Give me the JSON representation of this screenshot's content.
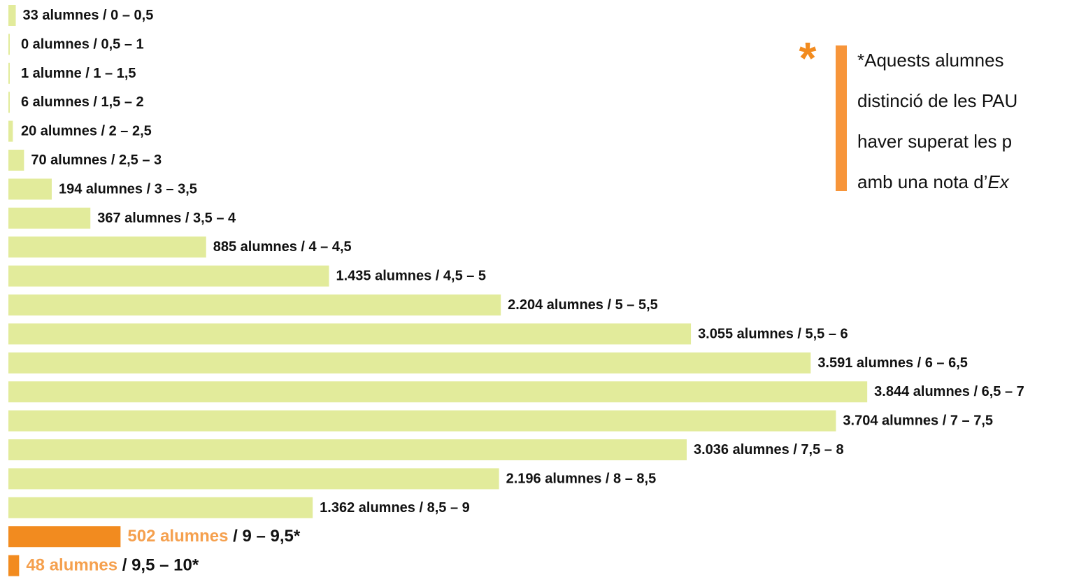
{
  "chart_data": {
    "type": "hbar",
    "categories": [
      "/ 0 – 0,5",
      "/ 0,5 – 1",
      "/ 1 – 1,5",
      "/ 1,5 – 2",
      "/ 2 – 2,5",
      "/ 2,5 – 3",
      "/ 3 – 3,5",
      "/ 3,5 – 4",
      "/ 4 – 4,5",
      "/ 4,5 – 5",
      "/ 5 – 5,5",
      "/ 5,5 – 6",
      "/ 6 – 6,5",
      "/ 6,5 – 7",
      "/ 7 – 7,5",
      "/ 7,5 – 8",
      "/ 8 – 8,5",
      "/ 8,5 – 9",
      "/ 9 – 9,5*",
      "/ 9,5 – 10*"
    ],
    "values": [
      33,
      0,
      1,
      6,
      20,
      70,
      194,
      367,
      885,
      1435,
      2204,
      3055,
      3591,
      3844,
      3704,
      3036,
      2196,
      1362,
      502,
      48
    ],
    "value_labels": [
      "33 alumnes",
      "0 alumnes",
      "1 alumne",
      "6 alumnes",
      "20 alumnes",
      "70 alumnes",
      "194 alumnes",
      "367 alumnes",
      "885 alumnes",
      "1.435 alumnes",
      "2.204 alumnes",
      "3.055 alumnes",
      "3.591 alumnes",
      "3.844 alumnes",
      "3.704 alumnes",
      "3.036 alumnes",
      "2.196 alumnes",
      "1.362 alumnes",
      "502 alumnes",
      "48 alumnes"
    ],
    "colors": [
      "#e2eb9b",
      "#e2eb9b",
      "#e2eb9b",
      "#e2eb9b",
      "#e2eb9b",
      "#e2eb9b",
      "#e2eb9b",
      "#e2eb9b",
      "#e2eb9b",
      "#e2eb9b",
      "#e2eb9b",
      "#e2eb9b",
      "#e2eb9b",
      "#e2eb9b",
      "#e2eb9b",
      "#e2eb9b",
      "#e2eb9b",
      "#e2eb9b",
      "#f28b1f",
      "#f28b1f"
    ],
    "highlight_label_color": "#f5a04e",
    "annotation": {
      "mark": "*",
      "lines": [
        [
          "*Aquests alumnes"
        ],
        [
          "distinció de les PAU"
        ],
        [
          "haver superat les p"
        ],
        [
          "amb una nota d’",
          "Ex"
        ]
      ]
    }
  }
}
